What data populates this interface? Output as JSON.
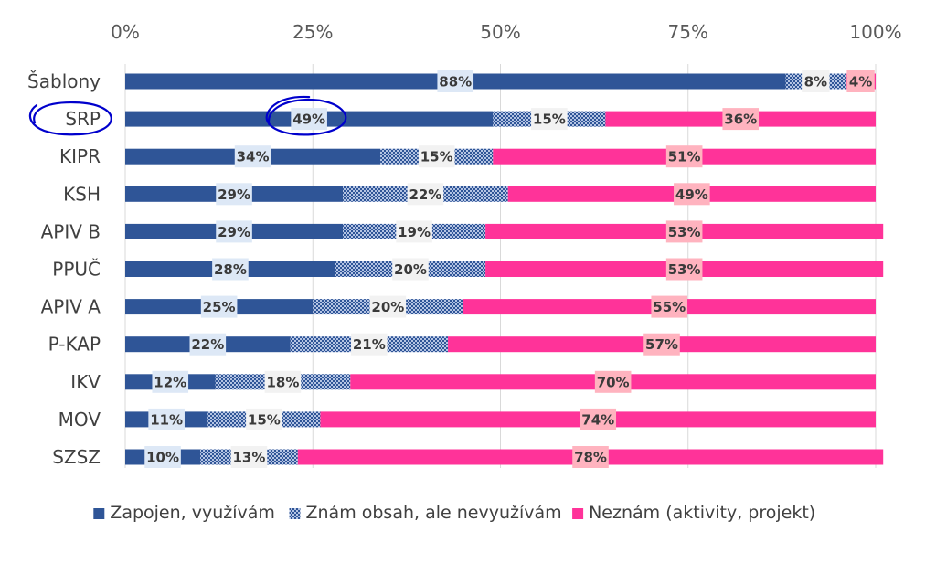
{
  "chart_data": {
    "type": "bar",
    "orientation": "horizontal",
    "stacked": true,
    "normalized": true,
    "categories": [
      "Šablony",
      "SRP",
      "KIPR",
      "KSH",
      "APIV B",
      "PPUČ",
      "APIV A",
      "P-KAP",
      "IKV",
      "MOV",
      "SZSZ"
    ],
    "series": [
      {
        "name": "Zapojen, využívám",
        "color": "#2f5597",
        "pattern": "solid",
        "values": [
          88,
          49,
          34,
          29,
          29,
          28,
          25,
          22,
          12,
          11,
          10
        ]
      },
      {
        "name": "Znám obsah, ale nevyužívám",
        "color": "#2f5597",
        "pattern": "checker",
        "values": [
          8,
          15,
          15,
          22,
          19,
          20,
          20,
          21,
          18,
          15,
          13
        ]
      },
      {
        "name": "Neznám (aktivity, projekt)",
        "color": "#ff3399",
        "pattern": "solid",
        "values": [
          4,
          36,
          51,
          49,
          53,
          53,
          55,
          57,
          70,
          74,
          78
        ]
      }
    ],
    "labels": [
      [
        "88%",
        "8%",
        "4%"
      ],
      [
        "49%",
        "15%",
        "36%"
      ],
      [
        "34%",
        "15%",
        "51%"
      ],
      [
        "29%",
        "22%",
        "49%"
      ],
      [
        "29%",
        "19%",
        "53%"
      ],
      [
        "28%",
        "20%",
        "53%"
      ],
      [
        "25%",
        "20%",
        "55%"
      ],
      [
        "22%",
        "21%",
        "57%"
      ],
      [
        "12%",
        "18%",
        "70%"
      ],
      [
        "11%",
        "15%",
        "74%"
      ],
      [
        "10%",
        "13%",
        "78%"
      ]
    ],
    "x_ticks": [
      "0%",
      "25%",
      "50%",
      "75%",
      "100%"
    ],
    "xlim": [
      0,
      100
    ],
    "x_axis_position": "top",
    "grid": true,
    "legend_position": "bottom",
    "annotations": [
      {
        "type": "hand-drawn-circle",
        "target": "category",
        "category": "SRP",
        "color": "#0000cc"
      },
      {
        "type": "hand-drawn-circle",
        "target": "data-label",
        "category": "SRP",
        "series": 0,
        "color": "#0000cc"
      }
    ]
  }
}
